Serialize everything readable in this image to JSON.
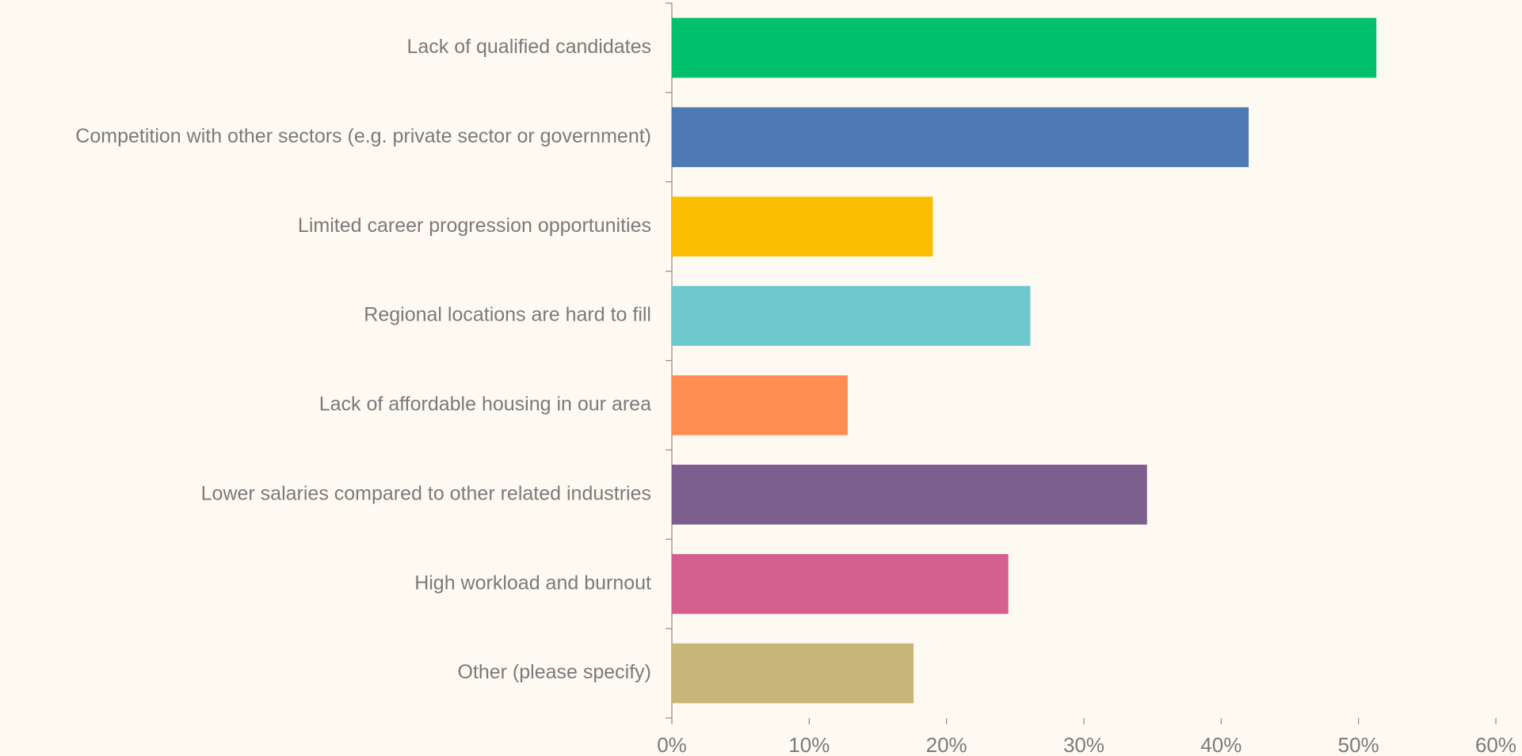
{
  "chart_data": {
    "type": "bar",
    "orientation": "horizontal",
    "categories": [
      "Lack of qualified candidates",
      "Competition with other sectors (e.g. private sector or government)",
      "Limited career progression opportunities",
      "Regional locations are hard to fill",
      "Lack of affordable housing in our area",
      "Lower salaries compared to other related industries",
      "High workload and burnout",
      "Other (please specify)"
    ],
    "values": [
      51.3,
      42.0,
      19.0,
      26.1,
      12.8,
      34.6,
      24.5,
      17.6
    ],
    "colors": [
      "#00c06d",
      "#4e7ab3",
      "#f9be00",
      "#6dc8cd",
      "#ff8c50",
      "#7c5e8f",
      "#d4608e",
      "#c8b678"
    ],
    "xlim": [
      0,
      60
    ],
    "xticks": [
      {
        "value": 0,
        "label": "0%"
      },
      {
        "value": 10,
        "label": "10%"
      },
      {
        "value": 20,
        "label": "20%"
      },
      {
        "value": 30,
        "label": "30%"
      },
      {
        "value": 40,
        "label": "40%"
      },
      {
        "value": 50,
        "label": "50%"
      },
      {
        "value": 60,
        "label": "60%"
      }
    ],
    "grid": false
  }
}
